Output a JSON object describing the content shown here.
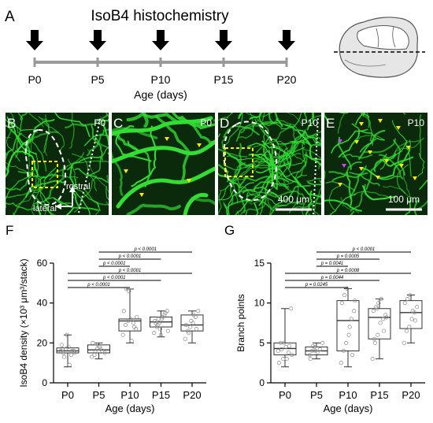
{
  "panel_letters": {
    "a": "A",
    "b": "B",
    "c": "C",
    "d": "D",
    "e": "E",
    "f": "F",
    "g": "G"
  },
  "timeline": {
    "title": "IsoB4 histochemistry",
    "ticks": [
      "P0",
      "P5",
      "P10",
      "P15",
      "P20"
    ],
    "xlabel": "Age (days)"
  },
  "micrographs": {
    "b": {
      "age": "P0",
      "rostral": "rostral",
      "lateral": "lateral"
    },
    "c": {
      "age": "P0"
    },
    "d": {
      "age": "P10",
      "scale": "400 μm"
    },
    "e": {
      "age": "P10",
      "scale": "100 μm"
    }
  },
  "colors": {
    "vessel": "#33dd33",
    "tissue": "#0b2a0b",
    "arrowhead": "#ffee00",
    "arrowhead_alt": "#cc44ff",
    "outline": "#ffffff",
    "box": "#ffee00"
  },
  "chart_data": [
    {
      "type": "box",
      "panel": "F",
      "categories": [
        "P0",
        "P5",
        "P10",
        "P15",
        "P20"
      ],
      "xlabel": "Age (days)",
      "ylabel": "IsoB4 density (×10³ μm³/stack)",
      "ylim": [
        0,
        60
      ],
      "yticks": [
        0,
        20,
        40,
        60
      ],
      "boxes": [
        {
          "min": 8,
          "q1": 15,
          "median": 16,
          "q3": 17.5,
          "max": 24
        },
        {
          "min": 12,
          "q1": 15,
          "median": 16.5,
          "q3": 19,
          "max": 20
        },
        {
          "min": 20,
          "q1": 26,
          "median": 31,
          "q3": 32,
          "max": 47
        },
        {
          "min": 23,
          "q1": 28,
          "median": 30.5,
          "q3": 33,
          "max": 36
        },
        {
          "min": 20,
          "q1": 26,
          "median": 29,
          "q3": 34,
          "max": 36
        }
      ],
      "points": [
        [
          16,
          15,
          17,
          18,
          14,
          16,
          19,
          13,
          24,
          9,
          16,
          15,
          17
        ],
        [
          13,
          14,
          17,
          18,
          16,
          15,
          20,
          16,
          19,
          17
        ],
        [
          24,
          29,
          31,
          32,
          30,
          27,
          36,
          47,
          46,
          21,
          28,
          33
        ],
        [
          25,
          28,
          30,
          32,
          34,
          36,
          31,
          29,
          27,
          33,
          35,
          26,
          30,
          32,
          24
        ],
        [
          22,
          26,
          28,
          30,
          33,
          36,
          29,
          25,
          31,
          34,
          27
        ]
      ],
      "comparisons": [
        {
          "from": 2,
          "to": 5,
          "label": "p < 0.0001"
        },
        {
          "from": 2,
          "to": 4,
          "label": "p < 0.0001"
        },
        {
          "from": 2,
          "to": 3,
          "label": "p < 0.0001"
        },
        {
          "from": 1,
          "to": 5,
          "label": "p < 0.0001"
        },
        {
          "from": 1,
          "to": 4,
          "label": "p < 0.0001"
        },
        {
          "from": 1,
          "to": 3,
          "label": "p < 0.0001"
        }
      ]
    },
    {
      "type": "box",
      "panel": "G",
      "categories": [
        "P0",
        "P5",
        "P10",
        "P15",
        "P20"
      ],
      "xlabel": "Age (days)",
      "ylabel": "Branch points",
      "ylim": [
        0,
        15
      ],
      "yticks": [
        0,
        5,
        10,
        15
      ],
      "boxes": [
        {
          "min": 2,
          "q1": 3.5,
          "median": 4.3,
          "q3": 5,
          "max": 9.3
        },
        {
          "min": 3,
          "q1": 3.5,
          "median": 4,
          "q3": 4.5,
          "max": 5
        },
        {
          "min": 2,
          "q1": 4,
          "median": 7.8,
          "q3": 10.3,
          "max": 11.8
        },
        {
          "min": 3,
          "q1": 5.5,
          "median": 8.2,
          "q3": 9.3,
          "max": 10.5
        },
        {
          "min": 5,
          "q1": 6.8,
          "median": 8.8,
          "q3": 10.3,
          "max": 11
        }
      ],
      "points": [
        [
          4,
          5,
          3,
          4.5,
          3.8,
          9.3,
          2.5,
          4.2,
          5,
          3,
          4.6,
          3.5
        ],
        [
          3.5,
          4,
          4.5,
          3.8,
          4.2,
          5,
          3,
          4.6,
          4
        ],
        [
          2.5,
          4,
          5,
          6,
          8,
          9,
          10,
          11,
          11.8,
          7,
          3.5,
          10.3
        ],
        [
          3,
          5,
          6,
          7.5,
          8,
          8.5,
          9,
          9.5,
          10,
          10.5,
          6.5,
          8.2,
          5.5,
          9.3
        ],
        [
          5,
          6.5,
          7,
          8,
          8.8,
          9.5,
          10,
          10.5,
          11,
          9,
          7.8
        ]
      ],
      "comparisons": [
        {
          "from": 2,
          "to": 5,
          "label": "p < 0.0001"
        },
        {
          "from": 2,
          "to": 4,
          "label": "p = 0.0005"
        },
        {
          "from": 2,
          "to": 3,
          "label": "p = 0.0041"
        },
        {
          "from": 1,
          "to": 5,
          "label": "p = 0.0008"
        },
        {
          "from": 1,
          "to": 4,
          "label": "p = 0.0044"
        },
        {
          "from": 1,
          "to": 3,
          "label": "p = 0.0245"
        }
      ]
    }
  ]
}
